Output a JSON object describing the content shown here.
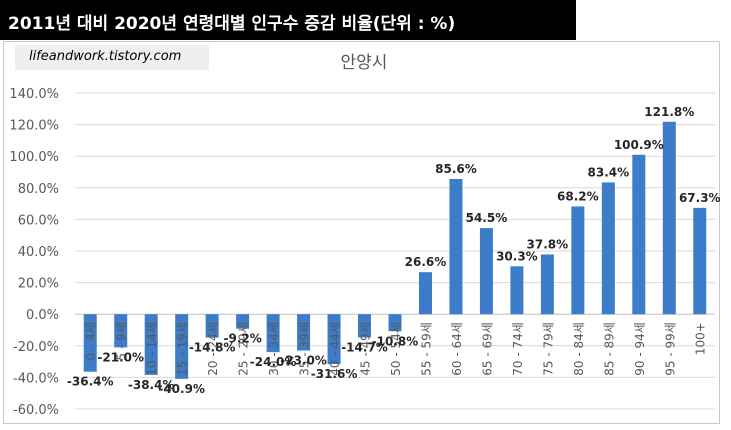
{
  "header": {
    "title": "2011년 대비 2020년 연령대별 인구수 증감 비율(단위 : %)"
  },
  "source": {
    "text": "lifeandwork.tistory.com"
  },
  "chart_data": {
    "type": "bar",
    "title": "안양시",
    "categories": [
      "0 - 4세",
      "5 - 9세",
      "10 - 14세",
      "15 - 19세",
      "20 - 24세",
      "25 - 29세",
      "30 - 34세",
      "35 - 39세",
      "40 - 44세",
      "45 - 49세",
      "50 - 54세",
      "55 - 59세",
      "60 - 64세",
      "65 - 69세",
      "70 - 74세",
      "75 - 79세",
      "80 - 84세",
      "85 - 89세",
      "90 - 94세",
      "95 - 99세",
      "100+"
    ],
    "values": [
      -36.4,
      -21.0,
      -38.4,
      -40.9,
      -14.8,
      -9.2,
      -24.0,
      -23.0,
      -31.6,
      -14.7,
      -10.8,
      26.6,
      85.6,
      54.5,
      30.3,
      37.8,
      68.2,
      83.4,
      100.9,
      121.8,
      67.3
    ],
    "data_labels": [
      "-36.4%",
      "-21.0%",
      "-38.4%",
      "-40.9%",
      "-14.8%",
      "-9.2%",
      "-24.0%",
      "-23.0%",
      "-31.6%",
      "-14.7%",
      "-10.8%",
      "26.6%",
      "85.6%",
      "54.5%",
      "30.3%",
      "37.8%",
      "68.2%",
      "83.4%",
      "100.9%",
      "121.8%",
      "67.3%"
    ],
    "y_ticks": [
      "140.0%",
      "120.0%",
      "100.0%",
      "80.0%",
      "60.0%",
      "40.0%",
      "20.0%",
      "0.0%",
      "-20.0%",
      "-40.0%",
      "-60.0%"
    ],
    "ylim": [
      -60,
      140
    ],
    "grid": true,
    "bar_color": "#3d7cc9"
  }
}
